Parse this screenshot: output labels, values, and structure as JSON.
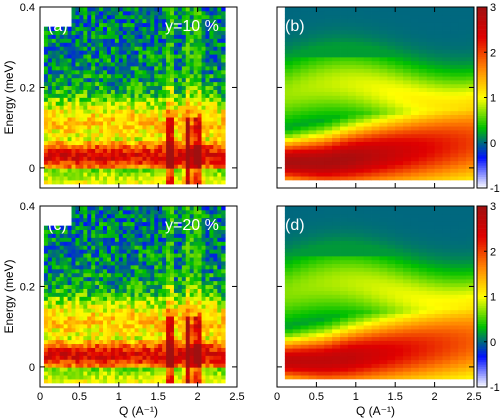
{
  "chart_data": [
    {
      "type": "heatmap",
      "panel_label": "(a)",
      "annotation": "y=10 %",
      "kind": "measured",
      "xlabel": "",
      "ylabel": "Energy (meV)",
      "xlim": [
        0,
        2.5
      ],
      "ylim": [
        -0.05,
        0.4
      ],
      "xticks": [
        "0",
        "0.5",
        "1",
        "1.5",
        "2",
        "2.5"
      ],
      "yticks": [
        "0",
        "0.2",
        "0.4"
      ],
      "show_xtick_labels": false,
      "show_ytick_labels": true,
      "data_x_range": [
        0.05,
        2.35
      ],
      "band_center_energy": 0.03,
      "vertical_streaks_Q": [
        1.65,
        1.88,
        2.0
      ]
    },
    {
      "type": "heatmap",
      "panel_label": "(b)",
      "annotation": "",
      "kind": "model",
      "xlabel": "",
      "ylabel": "",
      "xlim": [
        0,
        2.5
      ],
      "ylim": [
        -0.05,
        0.4
      ],
      "xticks": [
        "0",
        "0.5",
        "1",
        "1.5",
        "2",
        "2.5"
      ],
      "yticks": [
        "0",
        "0.2",
        "0.4"
      ],
      "show_xtick_labels": false,
      "show_ytick_labels": false,
      "data_x_range": [
        0.1,
        2.5
      ],
      "colorbar": {
        "min": -1,
        "max": 3,
        "ticks": [
          "-1",
          "0",
          "1",
          "2",
          "3"
        ]
      }
    },
    {
      "type": "heatmap",
      "panel_label": "(c)",
      "annotation": "y=20 %",
      "kind": "measured",
      "xlabel": "Q (A⁻¹)",
      "ylabel": "Energy (meV)",
      "xlim": [
        0,
        2.5
      ],
      "ylim": [
        -0.05,
        0.4
      ],
      "xticks": [
        "0",
        "0.5",
        "1",
        "1.5",
        "2",
        "2.5"
      ],
      "yticks": [
        "0",
        "0.2",
        "0.4"
      ],
      "show_xtick_labels": true,
      "show_ytick_labels": true,
      "data_x_range": [
        0.05,
        2.35
      ],
      "band_center_energy": 0.03,
      "vertical_streaks_Q": [
        1.65,
        1.88,
        2.0
      ]
    },
    {
      "type": "heatmap",
      "panel_label": "(d)",
      "annotation": "",
      "kind": "model",
      "xlabel": "Q (A⁻¹)",
      "ylabel": "",
      "xlim": [
        0,
        2.5
      ],
      "ylim": [
        -0.05,
        0.4
      ],
      "xticks": [
        "0",
        "0.5",
        "1",
        "1.5",
        "2",
        "2.5"
      ],
      "yticks": [
        "0",
        "0.2",
        "0.4"
      ],
      "show_xtick_labels": true,
      "show_ytick_labels": false,
      "data_x_range": [
        0.1,
        2.5
      ],
      "colorbar": {
        "min": -1,
        "max": 3,
        "ticks": [
          "-1",
          "0",
          "1",
          "2",
          "3"
        ]
      }
    }
  ],
  "colormap": [
    "#ffffff",
    "#0010ff",
    "#00c000",
    "#ffff00",
    "#ff8000",
    "#e00000",
    "#a01010"
  ]
}
